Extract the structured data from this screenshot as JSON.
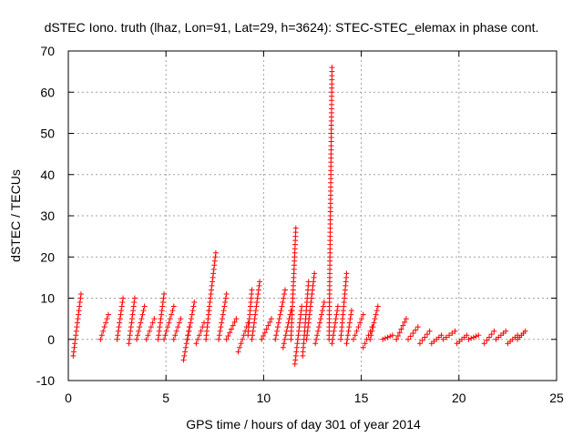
{
  "chart_data": {
    "type": "scatter",
    "title": "dSTEC Iono. truth (lhaz, Lon=91, Lat=29, h=3624): STEC-STEC_elemax in phase cont.",
    "xlabel": "GPS time / hours of day 301 of year 2014",
    "ylabel": "dSTEC  / TECUs",
    "xlim": [
      0,
      25
    ],
    "ylim": [
      -10,
      70
    ],
    "xticks": [
      0,
      5,
      10,
      15,
      20,
      25
    ],
    "yticks": [
      -10,
      0,
      10,
      20,
      30,
      40,
      50,
      60,
      70
    ],
    "xtick_labels": [
      "0",
      "5",
      "10",
      "15",
      "20",
      "25"
    ],
    "ytick_labels": [
      "-10",
      "0",
      "10",
      "20",
      "30",
      "40",
      "50",
      "60",
      "70"
    ],
    "grid": true,
    "legend": "none",
    "marker": "+",
    "color": "#ff0000",
    "arcs": [
      {
        "x": [
          0.25,
          0.65
        ],
        "y": [
          -4,
          11
        ]
      },
      {
        "x": [
          1.65,
          2.05
        ],
        "y": [
          0,
          6
        ]
      },
      {
        "x": [
          2.5,
          2.8
        ],
        "y": [
          0,
          10
        ]
      },
      {
        "x": [
          3.1,
          3.4
        ],
        "y": [
          -1,
          10
        ]
      },
      {
        "x": [
          3.5,
          3.9
        ],
        "y": [
          0,
          8
        ]
      },
      {
        "x": [
          4.0,
          4.4
        ],
        "y": [
          0,
          5
        ]
      },
      {
        "x": [
          4.6,
          4.9
        ],
        "y": [
          0,
          11
        ]
      },
      {
        "x": [
          4.9,
          5.4
        ],
        "y": [
          0,
          8
        ]
      },
      {
        "x": [
          5.4,
          5.75
        ],
        "y": [
          0,
          5
        ]
      },
      {
        "x": [
          5.9,
          6.2
        ],
        "y": [
          -5,
          3
        ]
      },
      {
        "x": [
          6.1,
          6.45
        ],
        "y": [
          0,
          9
        ]
      },
      {
        "x": [
          6.55,
          6.95
        ],
        "y": [
          -1,
          4
        ]
      },
      {
        "x": [
          7.05,
          7.2
        ],
        "y": [
          0,
          7
        ]
      },
      {
        "x": [
          7.2,
          7.55
        ],
        "y": [
          7,
          21
        ]
      },
      {
        "x": [
          7.7,
          8.1
        ],
        "y": [
          0,
          11
        ]
      },
      {
        "x": [
          8.1,
          8.6
        ],
        "y": [
          0,
          5
        ]
      },
      {
        "x": [
          8.7,
          9.2
        ],
        "y": [
          -3,
          4
        ]
      },
      {
        "x": [
          9.2,
          9.4
        ],
        "y": [
          1,
          12
        ]
      },
      {
        "x": [
          9.4,
          9.8
        ],
        "y": [
          0,
          14
        ]
      },
      {
        "x": [
          9.9,
          10.4
        ],
        "y": [
          0,
          5
        ]
      },
      {
        "x": [
          10.6,
          11.1
        ],
        "y": [
          0,
          12
        ]
      },
      {
        "x": [
          11.0,
          11.4
        ],
        "y": [
          -2,
          7
        ]
      },
      {
        "x": [
          11.4,
          11.65
        ],
        "y": [
          0,
          27
        ]
      },
      {
        "x": [
          11.6,
          11.95
        ],
        "y": [
          -6,
          8
        ]
      },
      {
        "x": [
          12.0,
          12.3
        ],
        "y": [
          -4,
          14
        ]
      },
      {
        "x": [
          12.2,
          12.6
        ],
        "y": [
          0,
          16
        ]
      },
      {
        "x": [
          12.65,
          13.1
        ],
        "y": [
          -1,
          9
        ]
      },
      {
        "x": [
          13.35,
          13.5
        ],
        "y": [
          0,
          66
        ]
      },
      {
        "x": [
          13.5,
          13.8
        ],
        "y": [
          -1,
          8
        ]
      },
      {
        "x": [
          13.95,
          14.25
        ],
        "y": [
          0,
          16
        ]
      },
      {
        "x": [
          14.25,
          14.5
        ],
        "y": [
          -1,
          7
        ]
      },
      {
        "x": [
          14.6,
          15.1
        ],
        "y": [
          0,
          6
        ]
      },
      {
        "x": [
          15.1,
          15.55
        ],
        "y": [
          -2,
          3
        ]
      },
      {
        "x": [
          15.45,
          15.85
        ],
        "y": [
          0,
          8
        ]
      },
      {
        "x": [
          16.1,
          16.6
        ],
        "y": [
          0,
          1
        ]
      },
      {
        "x": [
          16.8,
          17.3
        ],
        "y": [
          0,
          5
        ]
      },
      {
        "x": [
          17.4,
          17.9
        ],
        "y": [
          0,
          3
        ]
      },
      {
        "x": [
          18.0,
          18.5
        ],
        "y": [
          -1,
          2
        ]
      },
      {
        "x": [
          18.6,
          19.1
        ],
        "y": [
          -1,
          1
        ]
      },
      {
        "x": [
          19.2,
          19.8
        ],
        "y": [
          0,
          2
        ]
      },
      {
        "x": [
          19.9,
          20.4
        ],
        "y": [
          -1,
          1
        ]
      },
      {
        "x": [
          20.5,
          21.0
        ],
        "y": [
          0,
          1
        ]
      },
      {
        "x": [
          21.3,
          21.8
        ],
        "y": [
          -1,
          2
        ]
      },
      {
        "x": [
          21.9,
          22.4
        ],
        "y": [
          0,
          2
        ]
      },
      {
        "x": [
          22.5,
          23.0
        ],
        "y": [
          -1,
          1
        ]
      },
      {
        "x": [
          23.0,
          23.4
        ],
        "y": [
          0,
          2
        ]
      }
    ]
  }
}
